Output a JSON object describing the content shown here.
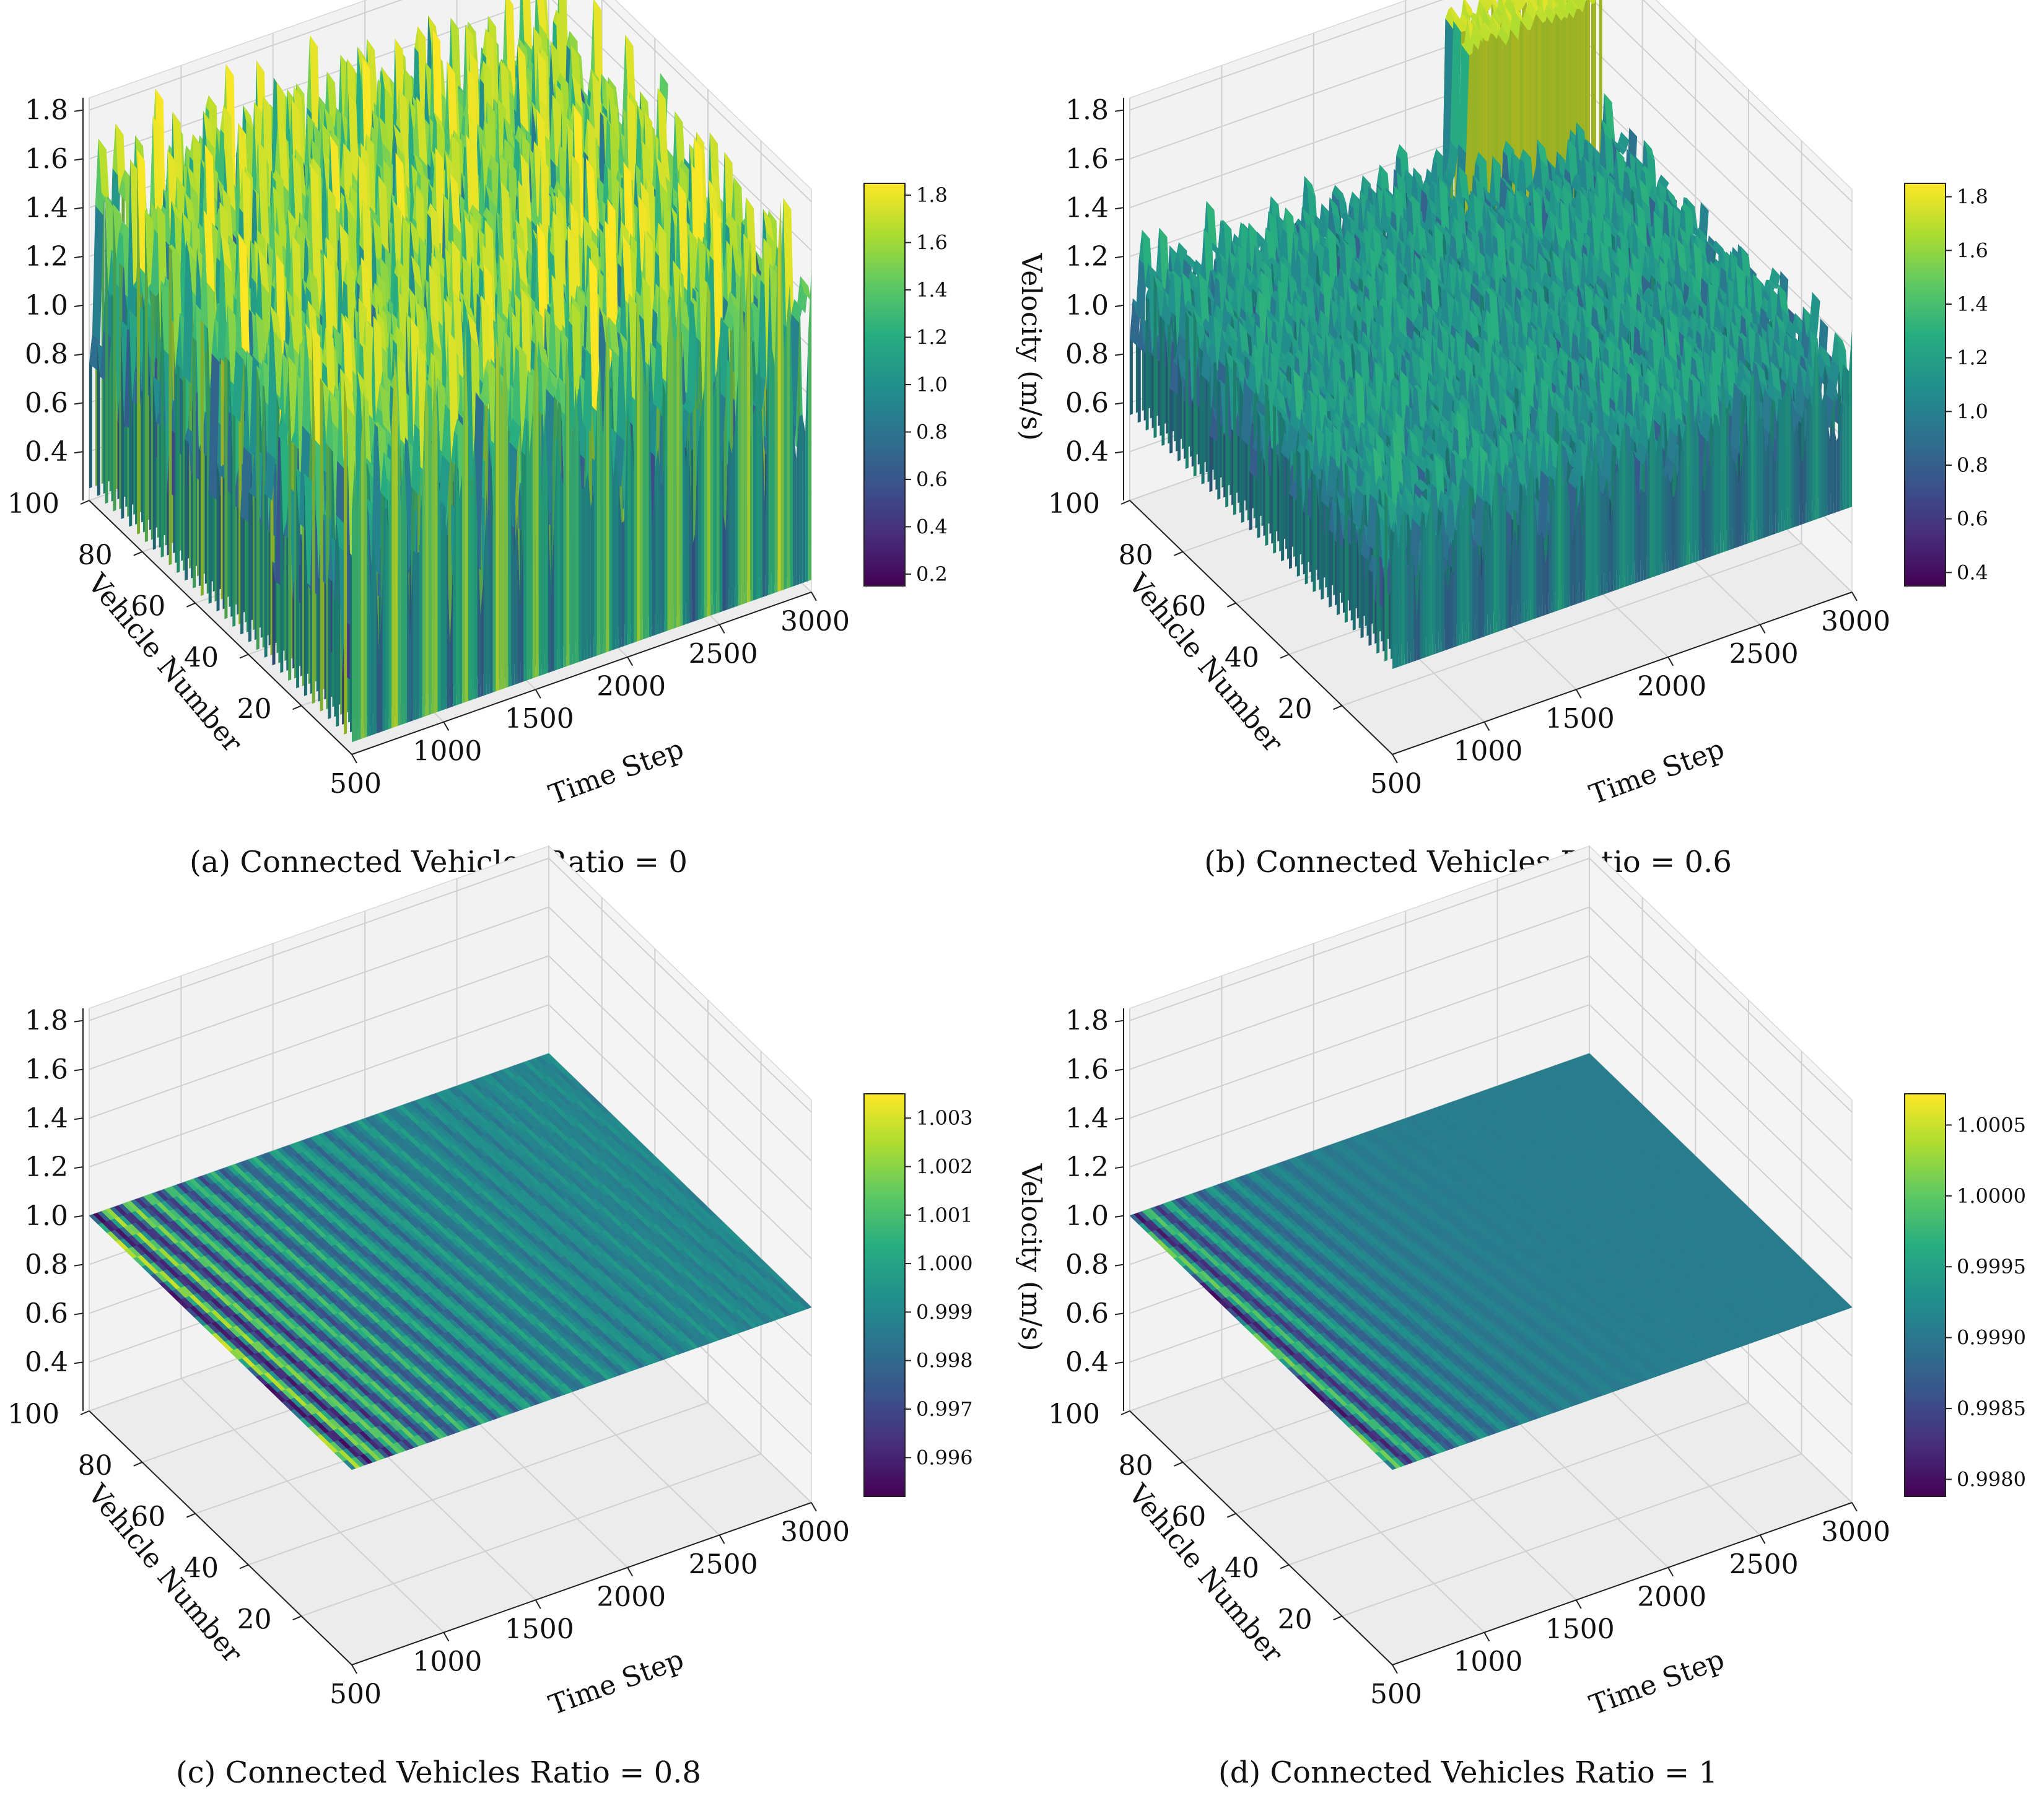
{
  "figure": {
    "colormap": "viridis",
    "colors": {
      "background": "#ffffff",
      "pane_floor": "#ececec",
      "pane_back": "#f2f2f2",
      "pane_side": "#f4f4f4",
      "grid": "#d0d0d0",
      "text": "#111111"
    }
  },
  "chart_data": [
    {
      "type": "surface3d",
      "caption": "(a) Connected Vehicles Ratio = 0",
      "xlabel": "Time Step",
      "ylabel": "Vehicle Number",
      "zlabel": "",
      "x_ticks": [
        "500",
        "1000",
        "1500",
        "2000",
        "2500",
        "3000"
      ],
      "y_ticks": [
        "20",
        "40",
        "60",
        "80",
        "100"
      ],
      "z_ticks": [
        "0.4",
        "0.6",
        "0.8",
        "1.0",
        "1.2",
        "1.4",
        "1.6",
        "1.8"
      ],
      "xlim": [
        500,
        3000
      ],
      "ylim": [
        1,
        100
      ],
      "zlim": [
        0.2,
        1.85
      ],
      "colorbar_ticks": [
        "0.2",
        "0.4",
        "0.6",
        "0.8",
        "1.0",
        "1.2",
        "1.4",
        "1.6",
        "1.8"
      ],
      "colorbar_range": [
        0.15,
        1.85
      ],
      "pattern": "strong stop-and-go waves across all time steps",
      "velocity_min": 0.15,
      "velocity_max": 1.85
    },
    {
      "type": "surface3d",
      "caption": "(b) Connected Vehicles Ratio = 0.6",
      "xlabel": "Time Step",
      "ylabel": "Vehicle Number",
      "zlabel": "Velocity (m/s)",
      "x_ticks": [
        "500",
        "1000",
        "1500",
        "2000",
        "2500",
        "3000"
      ],
      "y_ticks": [
        "20",
        "40",
        "60",
        "80",
        "100"
      ],
      "z_ticks": [
        "0.4",
        "0.6",
        "0.8",
        "1.0",
        "1.2",
        "1.4",
        "1.6",
        "1.8"
      ],
      "xlim": [
        500,
        3000
      ],
      "ylim": [
        1,
        100
      ],
      "zlim": [
        0.2,
        1.85
      ],
      "colorbar_ticks": [
        "0.4",
        "0.6",
        "0.8",
        "1.0",
        "1.2",
        "1.4",
        "1.6",
        "1.8"
      ],
      "colorbar_range": [
        0.35,
        1.85
      ],
      "pattern": "moderate oscillations, high-speed platoon near vehicle 100",
      "velocity_min": 0.35,
      "velocity_max": 1.85
    },
    {
      "type": "surface3d",
      "caption": "(c) Connected Vehicles Ratio = 0.8",
      "xlabel": "Time Step",
      "ylabel": "Vehicle Number",
      "zlabel": "",
      "x_ticks": [
        "500",
        "1000",
        "1500",
        "2000",
        "2500",
        "3000"
      ],
      "y_ticks": [
        "20",
        "40",
        "60",
        "80",
        "100"
      ],
      "z_ticks": [
        "0.4",
        "0.6",
        "0.8",
        "1.0",
        "1.2",
        "1.4",
        "1.6",
        "1.8"
      ],
      "xlim": [
        500,
        3000
      ],
      "ylim": [
        1,
        100
      ],
      "zlim": [
        0.2,
        1.85
      ],
      "colorbar_ticks": [
        "0.996",
        "0.997",
        "0.998",
        "0.999",
        "1.000",
        "1.001",
        "1.002",
        "1.003"
      ],
      "colorbar_range": [
        0.9952,
        1.0035
      ],
      "pattern": "nearly flat surface at 1.0 with small decaying ripples",
      "velocity_min": 0.9952,
      "velocity_max": 1.0035
    },
    {
      "type": "surface3d",
      "caption": "(d) Connected Vehicles Ratio = 1",
      "xlabel": "Time Step",
      "ylabel": "Vehicle Number",
      "zlabel": "Velocity (m/s)",
      "x_ticks": [
        "500",
        "1000",
        "1500",
        "2000",
        "2500",
        "3000"
      ],
      "y_ticks": [
        "20",
        "40",
        "60",
        "80",
        "100"
      ],
      "z_ticks": [
        "0.4",
        "0.6",
        "0.8",
        "1.0",
        "1.2",
        "1.4",
        "1.6",
        "1.8"
      ],
      "xlim": [
        500,
        3000
      ],
      "ylim": [
        1,
        100
      ],
      "zlim": [
        0.2,
        1.85
      ],
      "colorbar_ticks": [
        "0.9980",
        "0.9985",
        "0.9990",
        "0.9995",
        "1.0000",
        "1.0005"
      ],
      "colorbar_range": [
        0.99788,
        1.00072
      ],
      "pattern": "flat surface at 1.0 with very small ripples",
      "velocity_min": 0.99788,
      "velocity_max": 1.00072
    }
  ]
}
